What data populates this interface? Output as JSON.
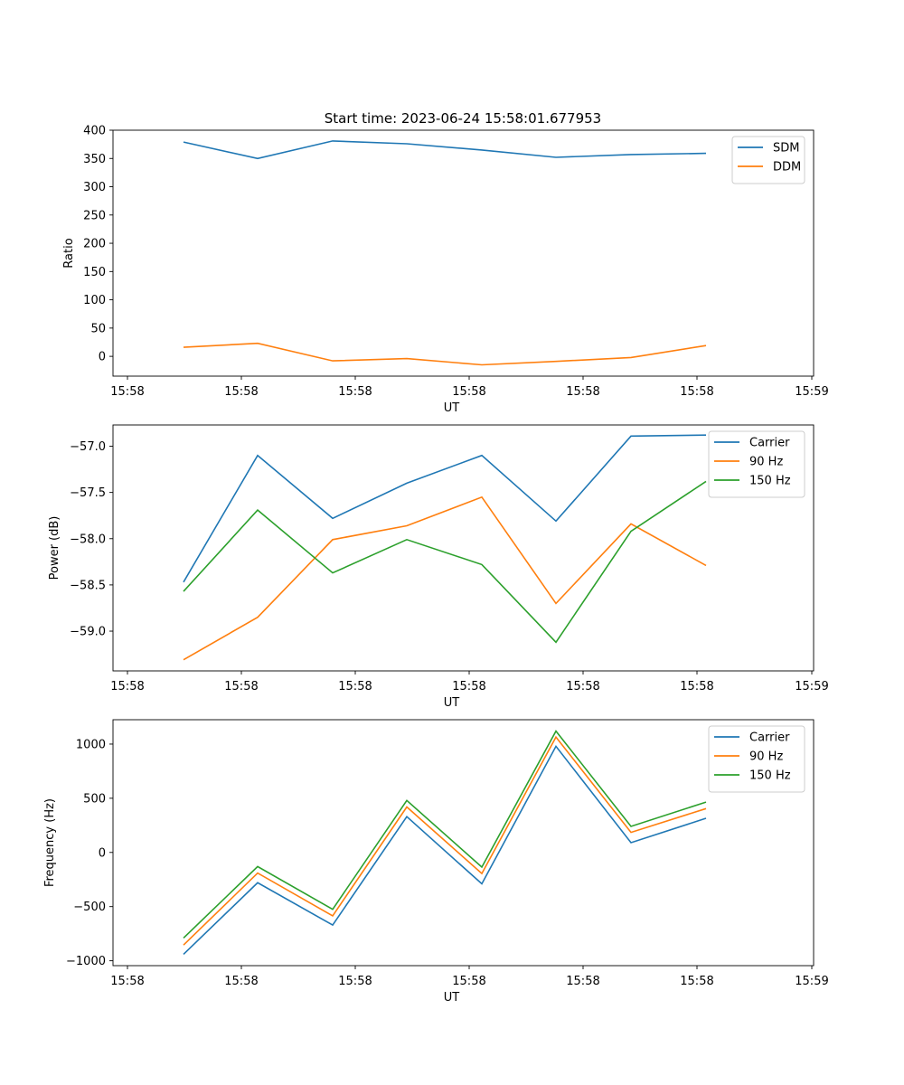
{
  "figure": {
    "title": "Start time: 2023-06-24 15:58:01.677953"
  },
  "chart_data": [
    {
      "type": "line",
      "xlabel": "UT",
      "ylabel": "Ratio",
      "x_tick_labels": [
        "15:58",
        "15:58",
        "15:58",
        "15:58",
        "15:58",
        "15:58",
        "15:59"
      ],
      "y_ticks": [
        0,
        50,
        100,
        150,
        200,
        250,
        300,
        350,
        400
      ],
      "ylim": [
        -35,
        400
      ],
      "legend_position": "upper-right",
      "series": [
        {
          "name": "SDM",
          "color": "#1f77b4",
          "values": [
            379,
            350,
            381,
            376,
            365,
            352,
            357,
            359
          ]
        },
        {
          "name": "DDM",
          "color": "#ff7f0e",
          "values": [
            16,
            23,
            -8,
            -4,
            -15,
            -9,
            -2,
            19
          ]
        }
      ]
    },
    {
      "type": "line",
      "xlabel": "UT",
      "ylabel": "Power (dB)",
      "x_tick_labels": [
        "15:58",
        "15:58",
        "15:58",
        "15:58",
        "15:58",
        "15:58",
        "15:59"
      ],
      "y_ticks": [
        -59.0,
        -58.5,
        -58.0,
        -57.5,
        -57.0
      ],
      "y_tick_labels": [
        "−59.0",
        "−58.5",
        "−58.0",
        "−57.5",
        "−57.0"
      ],
      "ylim": [
        -59.43,
        -56.77
      ],
      "legend_position": "upper-right",
      "series": [
        {
          "name": "Carrier",
          "color": "#1f77b4",
          "values": [
            -58.47,
            -57.1,
            -57.78,
            -57.4,
            -57.1,
            -57.81,
            -56.89,
            -56.88
          ]
        },
        {
          "name": "90 Hz",
          "color": "#ff7f0e",
          "values": [
            -59.31,
            -58.85,
            -58.01,
            -57.86,
            -57.55,
            -58.7,
            -57.84,
            -58.29
          ]
        },
        {
          "name": "150 Hz",
          "color": "#2ca02c",
          "values": [
            -58.57,
            -57.69,
            -58.37,
            -58.01,
            -58.28,
            -59.12,
            -57.92,
            -57.38
          ]
        }
      ]
    },
    {
      "type": "line",
      "xlabel": "UT",
      "ylabel": "Frequency (Hz)",
      "x_tick_labels": [
        "15:58",
        "15:58",
        "15:58",
        "15:58",
        "15:58",
        "15:58",
        "15:59"
      ],
      "y_ticks": [
        -1000,
        -500,
        0,
        500,
        1000
      ],
      "y_tick_labels": [
        "−1000",
        "−500",
        "0",
        "500",
        "1000"
      ],
      "ylim": [
        -1045,
        1225
      ],
      "legend_position": "upper-right",
      "series": [
        {
          "name": "Carrier",
          "color": "#1f77b4",
          "values": [
            -940,
            -280,
            -670,
            330,
            -290,
            980,
            90,
            315
          ]
        },
        {
          "name": "90 Hz",
          "color": "#ff7f0e",
          "values": [
            -855,
            -190,
            -585,
            420,
            -195,
            1065,
            185,
            405
          ]
        },
        {
          "name": "150 Hz",
          "color": "#2ca02c",
          "values": [
            -790,
            -130,
            -525,
            480,
            -135,
            1120,
            240,
            465
          ]
        }
      ]
    }
  ]
}
